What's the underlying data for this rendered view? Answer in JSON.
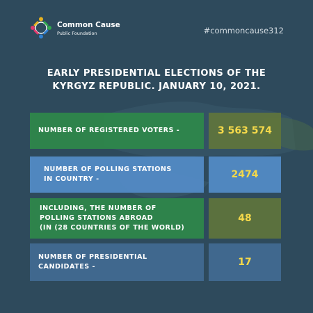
{
  "logo": {
    "title": "Common Cause",
    "subtitle": "Public Foundation"
  },
  "hashtag": "#commoncause312",
  "headline": {
    "line1": "EARLY PRESIDENTIAL ELECTIONS OF THE",
    "line2": "KYRGYZ REPUBLIC. JANUARY 10, 2021."
  },
  "stats": [
    {
      "label_lines": [
        "NUMBER OF REGISTERED VOTERS -"
      ],
      "value": "3 563 574"
    },
    {
      "label_lines": [
        "NUMBER OF POLLING STATIONS",
        "IN COUNTRY -"
      ],
      "value": "2474"
    },
    {
      "label_lines": [
        "INCLUDING, THE NUMBER OF",
        "POLLING STATIONS ABROAD",
        "(IN (28 COUNTRIES OF THE WORLD)"
      ],
      "value": "48"
    },
    {
      "label_lines": [
        "NUMBER OF PRESIDENTIAL",
        "CANDIDATES -"
      ],
      "value": "17"
    }
  ],
  "colors": {
    "background": "#2e4a5c",
    "value_text": "#f5d94a",
    "green_box": "#2e884a",
    "blue_box": "#548cc8",
    "steel_box": "#426c94"
  }
}
